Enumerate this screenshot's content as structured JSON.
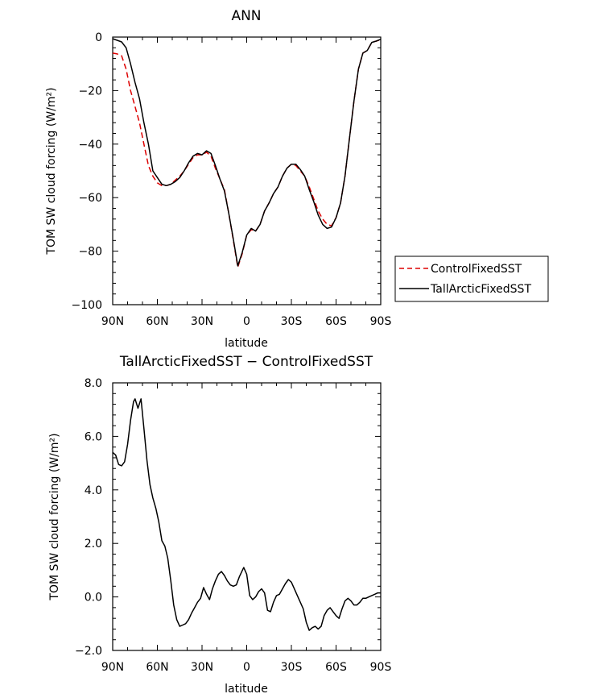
{
  "chart_data": [
    {
      "type": "line",
      "title": "ANN",
      "xlabel": "latitude",
      "ylabel": "TOM SW cloud forcing (W/m²)",
      "xlim": [
        90,
        -90
      ],
      "ylim": [
        -100,
        0
      ],
      "xticks": [
        {
          "value": 90,
          "label": "90N"
        },
        {
          "value": 60,
          "label": "60N"
        },
        {
          "value": 30,
          "label": "30N"
        },
        {
          "value": 0,
          "label": "0"
        },
        {
          "value": -30,
          "label": "30S"
        },
        {
          "value": -60,
          "label": "60S"
        },
        {
          "value": -90,
          "label": "90S"
        }
      ],
      "yticks": [
        {
          "value": 0,
          "label": "0"
        },
        {
          "value": -20,
          "label": "−20"
        },
        {
          "value": -40,
          "label": "−40"
        },
        {
          "value": -60,
          "label": "−60"
        },
        {
          "value": -80,
          "label": "−80"
        },
        {
          "value": -100,
          "label": "−100"
        }
      ],
      "legend_position": "right",
      "series": [
        {
          "name": "ControlFixedSST",
          "color": "#dd0000",
          "dash": "dashed",
          "points": [
            [
              90,
              -6
            ],
            [
              87,
              -6.3
            ],
            [
              84,
              -7
            ],
            [
              81,
              -12
            ],
            [
              78,
              -20
            ],
            [
              75,
              -26
            ],
            [
              72,
              -32
            ],
            [
              69,
              -40
            ],
            [
              66,
              -48
            ],
            [
              63,
              -52
            ],
            [
              60,
              -54.5
            ],
            [
              57,
              -55.5
            ],
            [
              54,
              -55.5
            ],
            [
              51,
              -55
            ],
            [
              48,
              -53.5
            ],
            [
              45,
              -52
            ],
            [
              42,
              -50
            ],
            [
              39,
              -47.5
            ],
            [
              36,
              -45
            ],
            [
              33,
              -44
            ],
            [
              30,
              -44
            ],
            [
              27,
              -43
            ],
            [
              24,
              -44.5
            ],
            [
              21,
              -49
            ],
            [
              18,
              -53
            ],
            [
              15,
              -57
            ],
            [
              12,
              -66
            ],
            [
              9,
              -76
            ],
            [
              6,
              -86
            ],
            [
              3,
              -81
            ],
            [
              0,
              -74
            ],
            [
              -3,
              -72
            ],
            [
              -6,
              -72.5
            ],
            [
              -9,
              -70
            ],
            [
              -12,
              -65
            ],
            [
              -15,
              -62
            ],
            [
              -18,
              -58.5
            ],
            [
              -21,
              -56
            ],
            [
              -24,
              -52
            ],
            [
              -27,
              -49
            ],
            [
              -30,
              -47.5
            ],
            [
              -33,
              -48
            ],
            [
              -36,
              -50
            ],
            [
              -39,
              -52
            ],
            [
              -42,
              -56
            ],
            [
              -45,
              -60.5
            ],
            [
              -48,
              -65
            ],
            [
              -51,
              -68
            ],
            [
              -54,
              -70
            ],
            [
              -57,
              -70.5
            ],
            [
              -60,
              -67.5
            ],
            [
              -63,
              -62
            ],
            [
              -66,
              -52
            ],
            [
              -69,
              -38
            ],
            [
              -72,
              -24
            ],
            [
              -75,
              -12
            ],
            [
              -78,
              -6
            ],
            [
              -81,
              -5
            ],
            [
              -84,
              -2
            ],
            [
              -87,
              -1.5
            ],
            [
              -90,
              -1
            ]
          ]
        },
        {
          "name": "TallArcticFixedSST",
          "color": "#000000",
          "dash": "solid",
          "points": [
            [
              90,
              -0.6
            ],
            [
              87,
              -1.2
            ],
            [
              84,
              -1.8
            ],
            [
              81,
              -4
            ],
            [
              78,
              -10
            ],
            [
              75,
              -17
            ],
            [
              72,
              -23
            ],
            [
              69,
              -32
            ],
            [
              66,
              -40
            ],
            [
              63,
              -50
            ],
            [
              60,
              -52.5
            ],
            [
              57,
              -55
            ],
            [
              54,
              -55.5
            ],
            [
              51,
              -55
            ],
            [
              48,
              -54
            ],
            [
              45,
              -52.5
            ],
            [
              42,
              -50
            ],
            [
              39,
              -47
            ],
            [
              36,
              -44.5
            ],
            [
              33,
              -43.5
            ],
            [
              30,
              -44
            ],
            [
              27,
              -42.5
            ],
            [
              24,
              -43.5
            ],
            [
              21,
              -48
            ],
            [
              18,
              -53
            ],
            [
              15,
              -57.5
            ],
            [
              12,
              -66
            ],
            [
              9,
              -75.5
            ],
            [
              6,
              -85.5
            ],
            [
              3,
              -80.5
            ],
            [
              0,
              -74
            ],
            [
              -3,
              -71.5
            ],
            [
              -6,
              -72.5
            ],
            [
              -9,
              -70
            ],
            [
              -12,
              -65
            ],
            [
              -15,
              -62
            ],
            [
              -18,
              -58.5
            ],
            [
              -21,
              -56
            ],
            [
              -24,
              -52
            ],
            [
              -27,
              -49
            ],
            [
              -30,
              -47.5
            ],
            [
              -33,
              -47.5
            ],
            [
              -36,
              -49.5
            ],
            [
              -39,
              -52
            ],
            [
              -42,
              -57
            ],
            [
              -45,
              -61.5
            ],
            [
              -48,
              -66.5
            ],
            [
              -51,
              -70
            ],
            [
              -54,
              -71.5
            ],
            [
              -57,
              -71
            ],
            [
              -60,
              -67.5
            ],
            [
              -63,
              -62
            ],
            [
              -66,
              -52
            ],
            [
              -69,
              -38
            ],
            [
              -72,
              -24
            ],
            [
              -75,
              -12
            ],
            [
              -78,
              -6
            ],
            [
              -81,
              -5
            ],
            [
              -84,
              -2
            ],
            [
              -87,
              -1.5
            ],
            [
              -90,
              -0.8
            ]
          ]
        }
      ]
    },
    {
      "type": "line",
      "title": "TallArcticFixedSST − ControlFixedSST",
      "xlabel": "latitude",
      "ylabel": "TOM SW cloud forcing (W/m²)",
      "xlim": [
        90,
        -90
      ],
      "ylim": [
        -2,
        8
      ],
      "xticks": [
        {
          "value": 90,
          "label": "90N"
        },
        {
          "value": 60,
          "label": "60N"
        },
        {
          "value": 30,
          "label": "30N"
        },
        {
          "value": 0,
          "label": "0"
        },
        {
          "value": -30,
          "label": "30S"
        },
        {
          "value": -60,
          "label": "60S"
        },
        {
          "value": -90,
          "label": "90S"
        }
      ],
      "yticks": [
        {
          "value": 8,
          "label": "8.0"
        },
        {
          "value": 6,
          "label": "6.0"
        },
        {
          "value": 4,
          "label": "4.0"
        },
        {
          "value": 2,
          "label": "2.0"
        },
        {
          "value": 0,
          "label": "0.0"
        },
        {
          "value": -2,
          "label": "−2.0"
        }
      ],
      "series": [
        {
          "name": "TallArcticFixedSST − ControlFixedSST",
          "color": "#000000",
          "dash": "solid",
          "points": [
            [
              90,
              5.4
            ],
            [
              88,
              5.3
            ],
            [
              86,
              4.95
            ],
            [
              84,
              4.9
            ],
            [
              82,
              5.05
            ],
            [
              80,
              5.7
            ],
            [
              78,
              6.6
            ],
            [
              76,
              7.3
            ],
            [
              75,
              7.4
            ],
            [
              73,
              7.05
            ],
            [
              71,
              7.4
            ],
            [
              69,
              6.3
            ],
            [
              67,
              5.1
            ],
            [
              65,
              4.2
            ],
            [
              63,
              3.7
            ],
            [
              61,
              3.3
            ],
            [
              59,
              2.8
            ],
            [
              57,
              2.1
            ],
            [
              55,
              1.9
            ],
            [
              53,
              1.45
            ],
            [
              51,
              0.6
            ],
            [
              49,
              -0.3
            ],
            [
              47,
              -0.85
            ],
            [
              45,
              -1.1
            ],
            [
              43,
              -1.05
            ],
            [
              41,
              -1.0
            ],
            [
              39,
              -0.85
            ],
            [
              37,
              -0.6
            ],
            [
              35,
              -0.4
            ],
            [
              33,
              -0.2
            ],
            [
              31,
              -0.05
            ],
            [
              29,
              0.35
            ],
            [
              27,
              0.1
            ],
            [
              25,
              -0.1
            ],
            [
              23,
              0.3
            ],
            [
              21,
              0.6
            ],
            [
              19,
              0.85
            ],
            [
              17,
              0.95
            ],
            [
              15,
              0.8
            ],
            [
              13,
              0.6
            ],
            [
              11,
              0.45
            ],
            [
              9,
              0.4
            ],
            [
              7,
              0.45
            ],
            [
              5,
              0.75
            ],
            [
              2,
              1.1
            ],
            [
              0,
              0.85
            ],
            [
              -2,
              0.05
            ],
            [
              -4,
              -0.1
            ],
            [
              -6,
              0.0
            ],
            [
              -8,
              0.2
            ],
            [
              -10,
              0.3
            ],
            [
              -12,
              0.15
            ],
            [
              -14,
              -0.5
            ],
            [
              -16,
              -0.55
            ],
            [
              -18,
              -0.2
            ],
            [
              -20,
              0.05
            ],
            [
              -22,
              0.1
            ],
            [
              -24,
              0.3
            ],
            [
              -26,
              0.5
            ],
            [
              -28,
              0.65
            ],
            [
              -30,
              0.55
            ],
            [
              -32,
              0.3
            ],
            [
              -34,
              0.05
            ],
            [
              -36,
              -0.2
            ],
            [
              -38,
              -0.45
            ],
            [
              -40,
              -0.95
            ],
            [
              -42,
              -1.25
            ],
            [
              -44,
              -1.15
            ],
            [
              -46,
              -1.1
            ],
            [
              -48,
              -1.2
            ],
            [
              -50,
              -1.1
            ],
            [
              -52,
              -0.7
            ],
            [
              -54,
              -0.5
            ],
            [
              -56,
              -0.4
            ],
            [
              -58,
              -0.55
            ],
            [
              -60,
              -0.7
            ],
            [
              -62,
              -0.8
            ],
            [
              -64,
              -0.45
            ],
            [
              -66,
              -0.15
            ],
            [
              -68,
              -0.05
            ],
            [
              -70,
              -0.15
            ],
            [
              -72,
              -0.3
            ],
            [
              -74,
              -0.3
            ],
            [
              -76,
              -0.2
            ],
            [
              -78,
              -0.05
            ],
            [
              -80,
              -0.05
            ],
            [
              -82,
              0.0
            ],
            [
              -84,
              0.05
            ],
            [
              -86,
              0.1
            ],
            [
              -88,
              0.15
            ],
            [
              -90,
              0.15
            ]
          ]
        }
      ]
    }
  ]
}
